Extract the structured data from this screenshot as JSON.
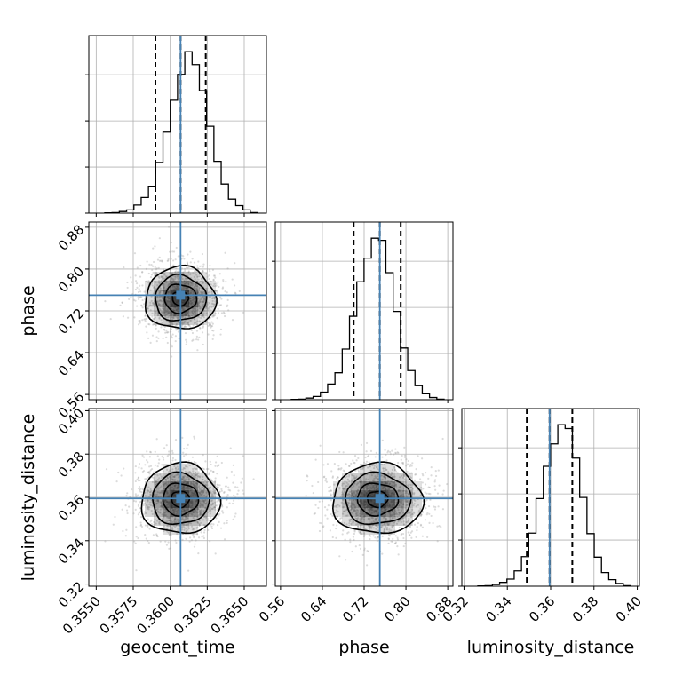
{
  "chart_data": {
    "type": "corner",
    "parameters": [
      "geocent_time",
      "phase",
      "luminosity_distance"
    ],
    "truths": {
      "geocent_time": 0.3607,
      "phase": 0.75,
      "luminosity_distance": 0.3595
    },
    "colors": {
      "truth": "#4682b4",
      "hist": "#000000",
      "grid": "#b0b0b0",
      "density": "#000000",
      "points": "#9a9a9a"
    },
    "grid": true,
    "axes": {
      "geocent_time": {
        "range": [
          0.3545,
          0.3665
        ],
        "ticks": [
          0.355,
          0.3575,
          0.36,
          0.3625,
          0.365
        ],
        "tick_labels": [
          "0.3550",
          "0.3575",
          "0.3600",
          "0.3625",
          "0.3650"
        ]
      },
      "phase": {
        "range": [
          0.55,
          0.89
        ],
        "ticks": [
          0.56,
          0.64,
          0.72,
          0.8,
          0.88
        ],
        "tick_labels": [
          "0.56",
          "0.64",
          "0.72",
          "0.80",
          "0.88"
        ]
      },
      "luminosity_distance": {
        "range": [
          0.319,
          0.401
        ],
        "ticks": [
          0.32,
          0.34,
          0.36,
          0.38,
          0.4
        ],
        "tick_labels": [
          "0.32",
          "0.34",
          "0.36",
          "0.38",
          "0.40"
        ]
      }
    },
    "marginals": [
      {
        "param": "geocent_time",
        "quantiles": [
          0.359,
          0.3607,
          0.3624
        ],
        "counts": [
          0.5,
          1,
          3,
          6,
          15,
          29,
          50,
          94,
          150,
          209,
          257,
          299,
          275,
          227,
          161,
          96,
          54,
          26,
          14,
          6,
          1
        ]
      },
      {
        "param": "phase",
        "quantiles": [
          0.7,
          0.75,
          0.79
        ],
        "counts": [
          0.5,
          1,
          3,
          6,
          14,
          29,
          50,
          94,
          155,
          219,
          263,
          300,
          296,
          236,
          164,
          96,
          54,
          26,
          11,
          4,
          1
        ]
      },
      {
        "param": "luminosity_distance",
        "quantiles": [
          0.349,
          0.3595,
          0.37
        ],
        "counts": [
          0.5,
          1,
          3,
          7,
          13,
          28,
          54,
          97,
          160,
          219,
          260,
          295,
          288,
          234,
          162,
          96,
          53,
          25,
          12,
          5,
          1
        ]
      }
    ],
    "pairs": [
      {
        "x": "geocent_time",
        "y": "phase"
      },
      {
        "x": "geocent_time",
        "y": "luminosity_distance"
      },
      {
        "x": "phase",
        "y": "luminosity_distance"
      }
    ]
  }
}
